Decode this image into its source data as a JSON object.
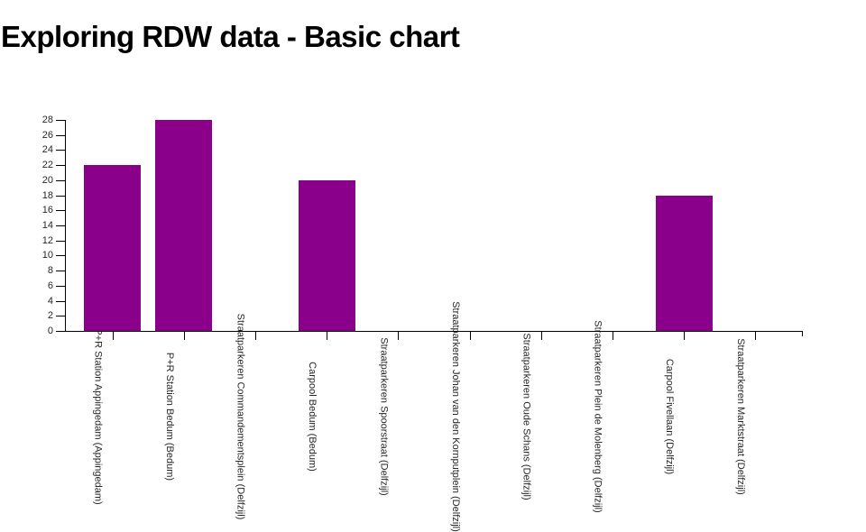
{
  "title": "Exploring RDW data - Basic chart",
  "accent_color": "#8B008B",
  "chart_data": {
    "type": "bar",
    "title": "Exploring RDW data - Basic chart",
    "categories": [
      "P+R Station Appingedam (Appingedam)",
      "P+R Station Bedum (Bedum)",
      "Straatparkeren Commandementsplein (Delfzijl)",
      "Carpool Bedum (Bedum)",
      "Straatparkeren Spoorstraat (Delfzijl)",
      "Straatparkeren Johan van den Kornputplein (Delfzijl)",
      "Straatparkeren Oude Schans (Delfzijl)",
      "Straatparkeren Plein de Molenberg (Delfzijl)",
      "Carpool Fivellaan (Delfzijl)",
      "Straatparkeren Marktstraat (Delfzijl)"
    ],
    "values": [
      22,
      28,
      0,
      20,
      0,
      0,
      0,
      0,
      18,
      0
    ],
    "xlabel": "",
    "ylabel": "",
    "ylim": [
      0,
      28
    ],
    "yticks": [
      0,
      2,
      4,
      6,
      8,
      10,
      12,
      14,
      16,
      18,
      20,
      22,
      24,
      26,
      28
    ],
    "bar_color": "#8B008B",
    "axis_color": "#000000",
    "label_color": "#262626",
    "grid": false,
    "legend": "none",
    "x_label_rotation_deg": 90
  }
}
